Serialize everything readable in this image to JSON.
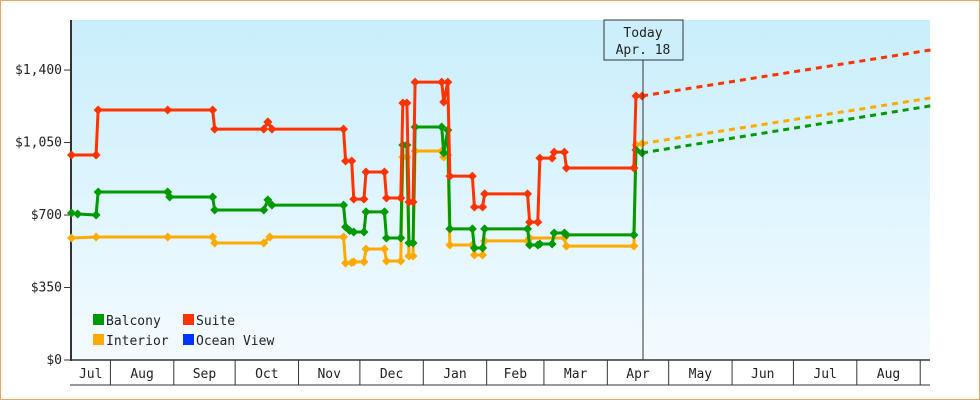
{
  "chart_data": {
    "type": "line",
    "title": "",
    "xlabel": "",
    "ylabel": "",
    "x_unit": "days since Jul 1",
    "xlim": [
      12,
      432
    ],
    "ylim": [
      0,
      1650
    ],
    "y_ticks": [
      0,
      350,
      700,
      1050,
      1400
    ],
    "y_tick_labels": [
      "$0",
      "$350",
      "$700",
      "$1,050",
      "$1,400"
    ],
    "months": [
      {
        "label": "Jul",
        "start": 0
      },
      {
        "label": "Aug",
        "start": 31
      },
      {
        "label": "Sep",
        "start": 62
      },
      {
        "label": "Oct",
        "start": 92
      },
      {
        "label": "Nov",
        "start": 123
      },
      {
        "label": "Dec",
        "start": 153
      },
      {
        "label": "Jan",
        "start": 184
      },
      {
        "label": "Feb",
        "start": 215
      },
      {
        "label": "Mar",
        "start": 243
      },
      {
        "label": "Apr",
        "start": 274
      },
      {
        "label": "May",
        "start": 304
      },
      {
        "label": "Jun",
        "start": 335
      },
      {
        "label": "Jul",
        "start": 365
      },
      {
        "label": "Aug",
        "start": 396
      },
      {
        "label": "",
        "start": 427
      }
    ],
    "today": {
      "day": 291,
      "line1": "Today",
      "line2": "Apr. 18"
    },
    "legend_position": "bottom-left",
    "series": [
      {
        "name": "Balcony",
        "color": "#009900",
        "points": [
          [
            12,
            710
          ],
          [
            15,
            705
          ],
          [
            24,
            700
          ],
          [
            25,
            811
          ],
          [
            59,
            811
          ],
          [
            60,
            787
          ],
          [
            81,
            787
          ],
          [
            82,
            724
          ],
          [
            106,
            724
          ],
          [
            108,
            773
          ],
          [
            110,
            748
          ],
          [
            145,
            748
          ],
          [
            146,
            642
          ],
          [
            148,
            625
          ],
          [
            150,
            618
          ],
          [
            155,
            618
          ],
          [
            156,
            715
          ],
          [
            165,
            715
          ],
          [
            166,
            589
          ],
          [
            173,
            589
          ],
          [
            174,
            1038
          ],
          [
            176,
            1038
          ],
          [
            177,
            565
          ],
          [
            179,
            565
          ],
          [
            180,
            1125
          ],
          [
            193,
            1125
          ],
          [
            194,
            1000
          ],
          [
            196,
            1110
          ],
          [
            197,
            633
          ],
          [
            208,
            633
          ],
          [
            209,
            541
          ],
          [
            213,
            541
          ],
          [
            214,
            633
          ],
          [
            235,
            633
          ],
          [
            236,
            555
          ],
          [
            240,
            555
          ],
          [
            241,
            560
          ],
          [
            247,
            560
          ],
          [
            248,
            613
          ],
          [
            253,
            613
          ],
          [
            254,
            604
          ],
          [
            287,
            604
          ],
          [
            288,
            1014
          ],
          [
            291,
            1000
          ]
        ],
        "forecast": [
          [
            291,
            1000
          ],
          [
            432,
            1227
          ]
        ]
      },
      {
        "name": "Suite",
        "color": "#ff3300",
        "points": [
          [
            12,
            990
          ],
          [
            24,
            990
          ],
          [
            25,
            1207
          ],
          [
            59,
            1207
          ],
          [
            81,
            1207
          ],
          [
            82,
            1115
          ],
          [
            106,
            1115
          ],
          [
            108,
            1150
          ],
          [
            110,
            1115
          ],
          [
            145,
            1115
          ],
          [
            146,
            961
          ],
          [
            149,
            961
          ],
          [
            150,
            777
          ],
          [
            155,
            777
          ],
          [
            156,
            908
          ],
          [
            165,
            908
          ],
          [
            166,
            782
          ],
          [
            173,
            782
          ],
          [
            174,
            1241
          ],
          [
            176,
            1241
          ],
          [
            177,
            763
          ],
          [
            179,
            763
          ],
          [
            180,
            1342
          ],
          [
            193,
            1342
          ],
          [
            194,
            1246
          ],
          [
            196,
            1342
          ],
          [
            197,
            888
          ],
          [
            208,
            888
          ],
          [
            209,
            739
          ],
          [
            213,
            739
          ],
          [
            214,
            802
          ],
          [
            235,
            802
          ],
          [
            236,
            666
          ],
          [
            240,
            666
          ],
          [
            241,
            975
          ],
          [
            247,
            975
          ],
          [
            248,
            1004
          ],
          [
            253,
            1004
          ],
          [
            254,
            927
          ],
          [
            287,
            927
          ],
          [
            288,
            1275
          ],
          [
            291,
            1275
          ]
        ],
        "forecast": [
          [
            291,
            1275
          ],
          [
            432,
            1497
          ]
        ]
      },
      {
        "name": "Interior",
        "color": "#ffaa00",
        "points": [
          [
            12,
            589
          ],
          [
            24,
            594
          ],
          [
            59,
            594
          ],
          [
            81,
            594
          ],
          [
            82,
            565
          ],
          [
            106,
            565
          ],
          [
            109,
            594
          ],
          [
            145,
            594
          ],
          [
            146,
            468
          ],
          [
            149,
            470
          ],
          [
            150,
            474
          ],
          [
            155,
            474
          ],
          [
            156,
            536
          ],
          [
            165,
            536
          ],
          [
            166,
            478
          ],
          [
            173,
            478
          ],
          [
            174,
            980
          ],
          [
            176,
            980
          ],
          [
            177,
            502
          ],
          [
            179,
            502
          ],
          [
            180,
            1009
          ],
          [
            193,
            1009
          ],
          [
            194,
            980
          ],
          [
            196,
            990
          ],
          [
            197,
            555
          ],
          [
            208,
            555
          ],
          [
            209,
            507
          ],
          [
            213,
            507
          ],
          [
            214,
            575
          ],
          [
            235,
            575
          ],
          [
            236,
            589
          ],
          [
            253,
            589
          ],
          [
            254,
            550
          ],
          [
            287,
            550
          ],
          [
            288,
            1038
          ],
          [
            291,
            1045
          ]
        ],
        "forecast": [
          [
            291,
            1045
          ],
          [
            432,
            1265
          ]
        ]
      },
      {
        "name": "Ocean View",
        "color": "#0033ff",
        "points": [],
        "forecast": []
      }
    ]
  }
}
